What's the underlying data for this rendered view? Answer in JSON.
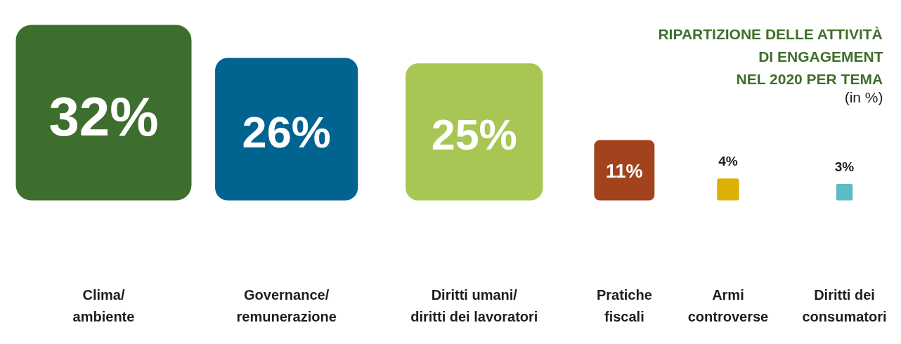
{
  "chart_data": {
    "type": "other",
    "title": "RIPARTIZIONE DELLE ATTIVITÀ\nDI ENGAGEMENT\nNEL 2020 PER TEMA",
    "subtitle": "(in %)",
    "categories": [
      "Clima/\nambiente",
      "Governance/\nremunerazione",
      "Diritti umani/\ndiritti dei lavoratori",
      "Pratiche\nfiscali",
      "Armi\ncontroverse",
      "Diritti dei\nconsumatori"
    ],
    "values": [
      32,
      26,
      25,
      11,
      4,
      3
    ],
    "colors": [
      "#3d6e2e",
      "#006390",
      "#a8c653",
      "#a2431d",
      "#ddb006",
      "#5bbcc4"
    ],
    "value_labels": [
      "32%",
      "26%",
      "25%",
      "11%",
      "4%",
      "3%"
    ]
  }
}
